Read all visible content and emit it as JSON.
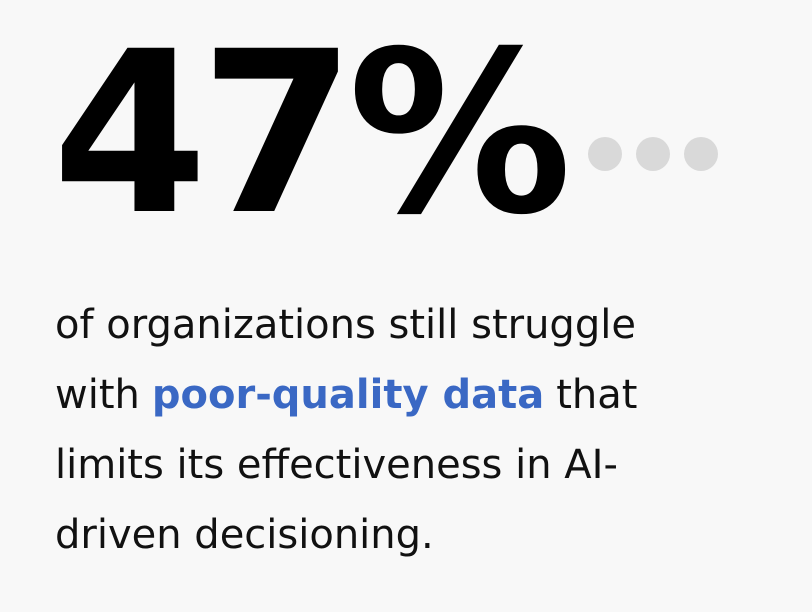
{
  "stat": "47%",
  "body": {
    "line1": "of organizations still struggle",
    "line2_before": "with",
    "highlight": "poor-quality data",
    "line2_after": "that",
    "line3": "limits its effectiveness in AI-",
    "line4": "driven decisioning."
  }
}
